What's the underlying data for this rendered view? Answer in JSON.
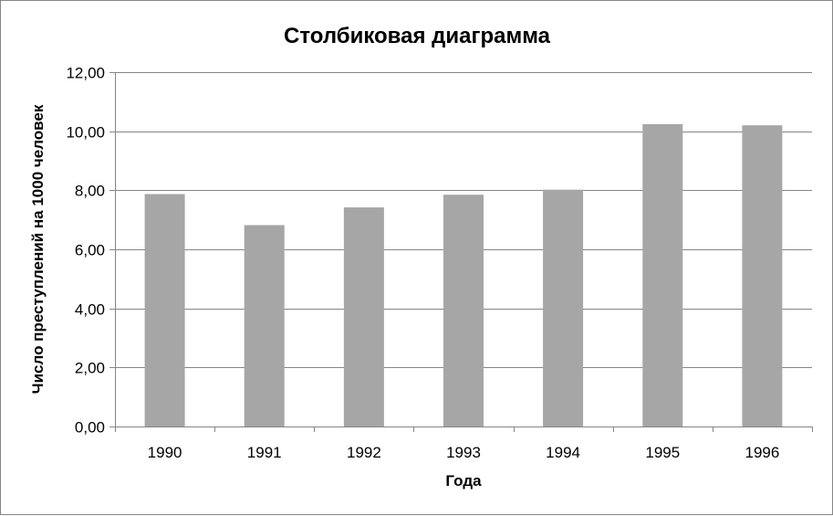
{
  "chart_data": {
    "type": "bar",
    "title": "Столбиковая диаграмма",
    "xlabel": "Года",
    "ylabel": "Число преступлений на 1000 человек",
    "categories": [
      "1990",
      "1991",
      "1992",
      "1993",
      "1994",
      "1995",
      "1996"
    ],
    "values": [
      7.87,
      6.82,
      7.42,
      7.85,
      8.02,
      10.24,
      10.2
    ],
    "ylim": [
      0,
      12
    ],
    "y_ticks": [
      "0,00",
      "2,00",
      "4,00",
      "6,00",
      "8,00",
      "10,00",
      "12,00"
    ],
    "grid": true,
    "legend": "none",
    "bar_color": "#a6a6a6",
    "gridline_color": "#868686"
  }
}
